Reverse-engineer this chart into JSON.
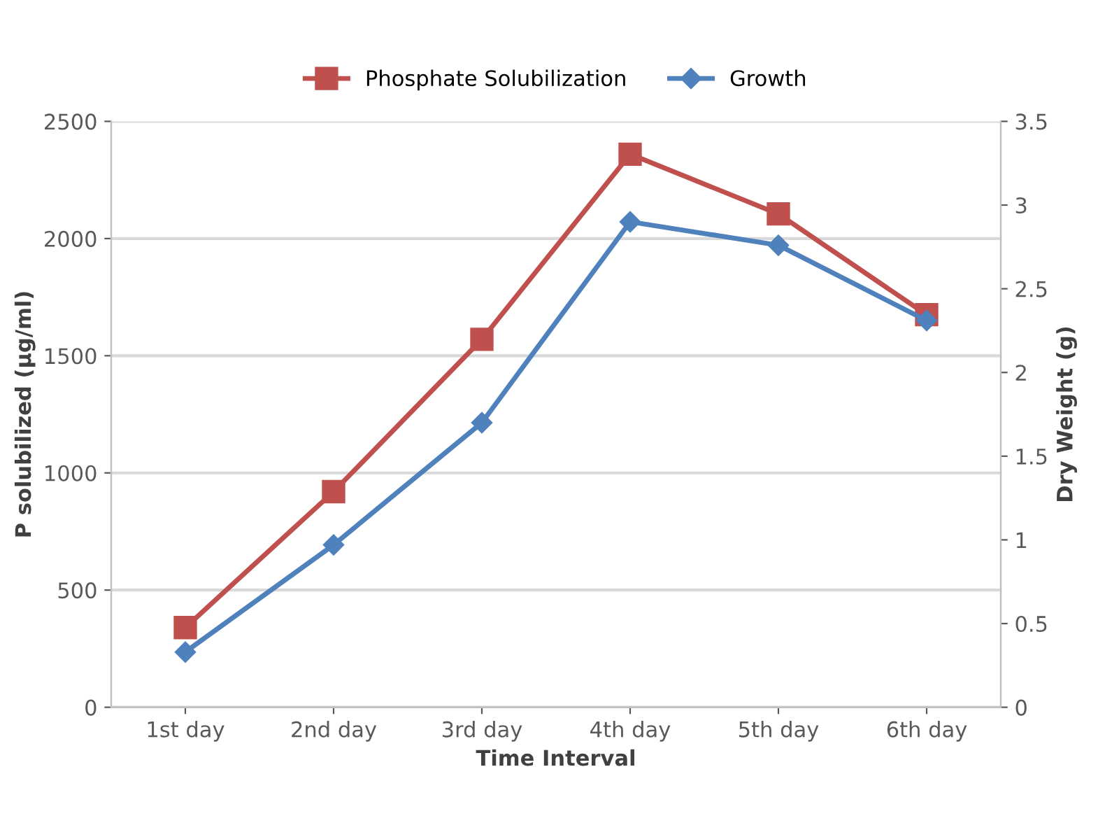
{
  "chart_data": {
    "type": "line",
    "xlabel": "Time Interval",
    "ylabel": "P solubilized (µg/ml)",
    "y2label": "Dry Weight (g)",
    "categories": [
      "1st day",
      "2nd day",
      "3rd day",
      "4th day",
      "5th day",
      "6th day"
    ],
    "series": [
      {
        "name": "Phosphate Solubilization",
        "color": "#c0504d",
        "marker": "square",
        "values": [
          340,
          920,
          1570,
          2360,
          2105,
          1675
        ]
      },
      {
        "name": "Growth",
        "color": "#4f81bd",
        "marker": "diamond",
        "axis": "y2",
        "values": [
          0.33,
          0.97,
          1.7,
          2.9,
          2.76,
          2.31
        ]
      }
    ],
    "ylim": [
      0,
      2500
    ],
    "yticks": [
      0,
      500,
      1000,
      1500,
      2000,
      2500
    ],
    "y2lim": [
      0,
      3.5
    ],
    "y2ticks": [
      0,
      0.5,
      1,
      1.5,
      2,
      2.5,
      3,
      3.5
    ],
    "grid": "y",
    "legend": "top",
    "line_style": "solid"
  }
}
